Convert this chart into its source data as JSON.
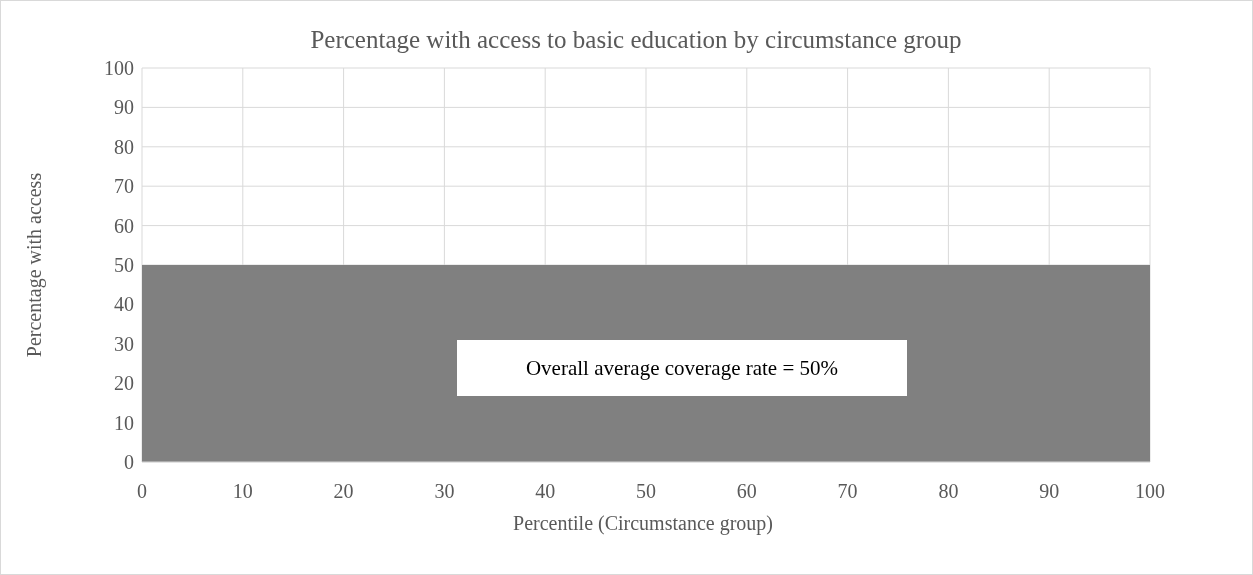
{
  "chart_data": {
    "type": "area",
    "title": "Percentage with access to basic education by circumstance group",
    "xlabel": "Percentile (Circumstance group)",
    "ylabel": "Percentage with access",
    "x": [
      0,
      100
    ],
    "series": [
      {
        "color": "#808080",
        "values": [
          50,
          50
        ]
      }
    ],
    "xlim": [
      0,
      100
    ],
    "xticks": [
      0,
      10,
      20,
      30,
      40,
      50,
      60,
      70,
      80,
      90,
      100
    ],
    "ylim": [
      0,
      100
    ],
    "yticks": [
      0,
      10,
      20,
      30,
      40,
      50,
      60,
      70,
      80,
      90,
      100
    ],
    "grid": true,
    "annotations": [
      "Overall average coverage rate = 50%"
    ]
  }
}
